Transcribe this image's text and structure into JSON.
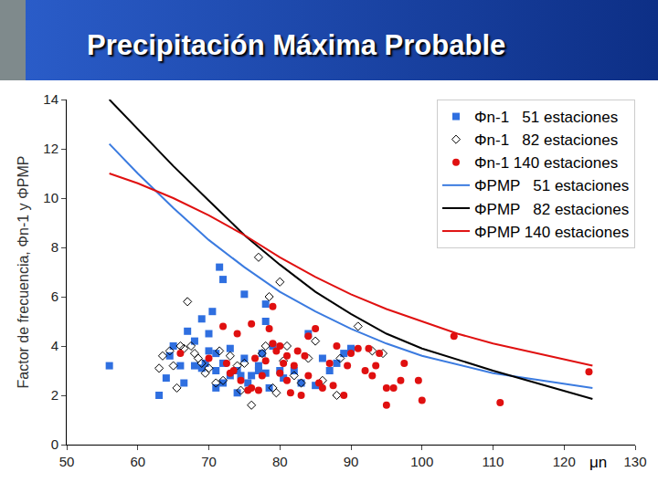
{
  "chart_data": {
    "type": "scatter",
    "title": "Precipitación Máxima Probable",
    "x_label": "μn",
    "y_label": "Factor de frecuencia, Φn-1 y ΦPMP",
    "xlim": [
      50,
      130
    ],
    "ylim": [
      0,
      14
    ],
    "xticks": [
      50,
      60,
      70,
      80,
      90,
      100,
      110,
      120,
      130
    ],
    "yticks": [
      0,
      2,
      4,
      6,
      8,
      10,
      12,
      14
    ],
    "grid": false,
    "legend": "top-right",
    "series": [
      {
        "name": "Φn-1   51 estaciones",
        "type": "scatter",
        "marker": "square",
        "color": "#2f6fe0",
        "x": [
          56,
          63,
          64,
          64.5,
          65,
          66,
          67,
          68,
          69,
          69,
          69.5,
          70,
          70,
          70.5,
          71,
          71,
          71.5,
          72,
          72,
          72,
          73,
          73,
          74,
          74,
          74.5,
          75,
          75,
          75.5,
          77,
          77,
          77.5,
          78,
          78,
          78,
          78.5,
          79,
          80,
          80.5,
          82,
          83,
          84,
          85,
          86,
          87,
          88,
          89,
          90,
          71,
          76,
          68,
          66.5
        ],
        "values": [
          3.2,
          2.0,
          2.7,
          3.6,
          4.0,
          3.2,
          4.6,
          3.2,
          3.1,
          5.1,
          3.3,
          3.8,
          4.5,
          5.4,
          3.0,
          3.7,
          7.2,
          6.7,
          3.3,
          2.5,
          3.9,
          2.8,
          3.0,
          2.1,
          2.8,
          6.1,
          3.5,
          2.5,
          3.0,
          3.2,
          3.7,
          5.7,
          5.0,
          2.9,
          2.3,
          4.0,
          3.0,
          2.7,
          3.0,
          2.5,
          4.5,
          2.4,
          3.5,
          3.0,
          3.3,
          3.7,
          3.9,
          2.3,
          2.8,
          4.2,
          2.5
        ]
      },
      {
        "name": "Φn-1   82 estaciones",
        "type": "scatter",
        "marker": "diamond-open",
        "color": "#000000",
        "x": [
          63,
          63.5,
          64.5,
          65,
          65.5,
          66,
          66.5,
          67,
          67.5,
          68,
          68.5,
          69,
          69.5,
          70,
          71,
          71.5,
          72,
          73,
          74,
          74.5,
          75,
          76,
          77,
          77.5,
          78,
          78.5,
          79,
          79.5,
          80,
          80.5,
          81,
          82,
          83,
          84,
          86,
          88,
          88.5,
          91,
          93,
          94.5,
          85
        ],
        "values": [
          3.1,
          3.6,
          3.8,
          3.2,
          2.3,
          4.0,
          3.9,
          5.8,
          4.0,
          3.7,
          3.5,
          3.3,
          2.9,
          3.1,
          2.5,
          3.8,
          2.6,
          3.6,
          3.2,
          2.2,
          3.3,
          1.6,
          7.6,
          3.7,
          4.0,
          6.0,
          2.3,
          2.1,
          6.6,
          3.4,
          4.0,
          2.8,
          2.5,
          3.5,
          2.6,
          2.0,
          3.5,
          4.8,
          3.8,
          3.7,
          4.2
        ]
      },
      {
        "name": "Φn-1 140 estaciones",
        "type": "scatter",
        "marker": "circle",
        "color": "#e01010",
        "x": [
          66,
          70,
          72,
          72.5,
          73,
          74,
          74.5,
          75.5,
          76,
          76.5,
          77,
          78,
          78.5,
          79,
          79,
          79.5,
          80,
          80,
          80.5,
          81,
          81.5,
          82,
          82.5,
          83,
          83.5,
          84,
          84,
          85,
          85.5,
          86,
          87,
          87.5,
          88,
          89,
          89.5,
          90,
          91,
          92,
          92.5,
          93,
          93.5,
          94,
          95,
          95,
          96,
          97,
          97.5,
          99.5,
          100,
          104.5,
          111,
          123.5,
          76,
          73.5,
          81,
          77.5
        ],
        "values": [
          3.7,
          3.5,
          4.8,
          3.3,
          2.9,
          4.5,
          2.6,
          2.2,
          4.9,
          3.5,
          2.2,
          3.4,
          4.7,
          4.1,
          5.6,
          3.8,
          4.0,
          2.9,
          3.3,
          2.6,
          2.1,
          3.2,
          3.8,
          2.0,
          3.6,
          2.8,
          4.4,
          4.7,
          2.5,
          2.3,
          3.3,
          2.4,
          4.0,
          2.0,
          3.2,
          3.7,
          3.9,
          3.0,
          3.9,
          2.8,
          3.2,
          3.7,
          2.3,
          1.6,
          2.3,
          2.6,
          3.3,
          2.6,
          1.8,
          4.4,
          1.7,
          2.95,
          2.3,
          3.0,
          3.6,
          2.8
        ]
      },
      {
        "name": "ΦPMP   51 estaciones",
        "type": "line",
        "line_style": "solid",
        "color": "#3b7be0",
        "x": [
          56,
          60,
          65,
          70,
          75,
          80,
          85,
          90,
          95,
          100,
          110,
          124
        ],
        "values": [
          12.2,
          11.0,
          9.6,
          8.3,
          7.2,
          6.2,
          5.4,
          4.7,
          4.1,
          3.6,
          2.9,
          2.3
        ]
      },
      {
        "name": "ΦPMP   82 estaciones",
        "type": "line",
        "line_style": "solid",
        "color": "#000000",
        "x": [
          56,
          60,
          65,
          70,
          75,
          80,
          85,
          90,
          95,
          100,
          110,
          124
        ],
        "values": [
          14.0,
          12.8,
          11.3,
          9.9,
          8.5,
          7.3,
          6.2,
          5.3,
          4.5,
          3.9,
          3.0,
          1.85
        ]
      },
      {
        "name": "ΦPMP 140 estaciones",
        "type": "line",
        "line_style": "solid",
        "color": "#e01010",
        "x": [
          56,
          60,
          65,
          70,
          75,
          80,
          85,
          90,
          95,
          100,
          105,
          110,
          124
        ],
        "values": [
          11.0,
          10.6,
          10.0,
          9.3,
          8.5,
          7.6,
          6.8,
          6.1,
          5.5,
          5.0,
          4.5,
          4.1,
          3.2
        ]
      }
    ]
  }
}
